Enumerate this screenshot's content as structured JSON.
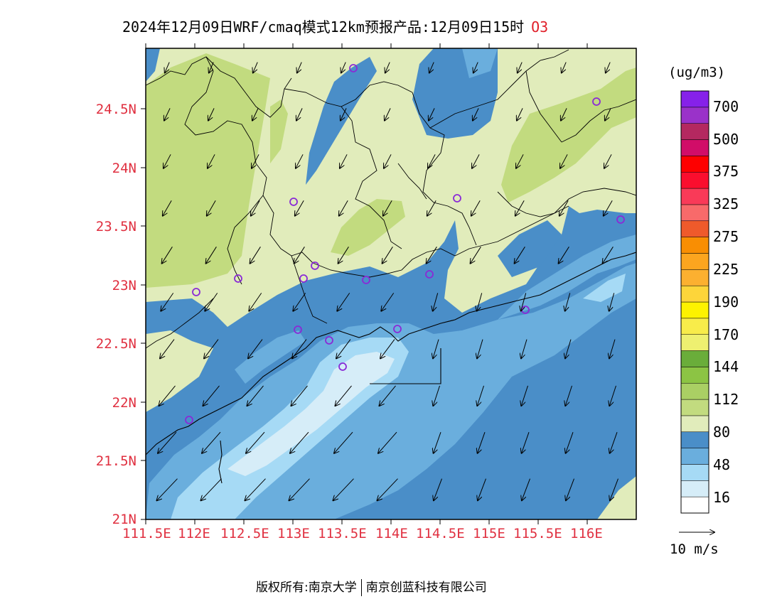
{
  "title": {
    "main": "2024年12月09日WRF/cmaq模式12km预报产品:12月09日15时",
    "species": "O3"
  },
  "axes": {
    "lat_labels": [
      "24.5N",
      "24N",
      "23.5N",
      "23N",
      "22.5N",
      "22N",
      "21.5N",
      "21N"
    ],
    "lon_labels": [
      "111.5E",
      "112E",
      "112.5E",
      "113E",
      "113.5E",
      "114E",
      "114.5E",
      "115E",
      "115.5E",
      "116E"
    ]
  },
  "colorbar": {
    "unit": "(ug/m3)",
    "colors": [
      "#ffffff",
      "#d6edf8",
      "#a6daf5",
      "#6aaedd",
      "#4a8ec8",
      "#e1ecbb",
      "#c2db7f",
      "#aacf64",
      "#8cc444",
      "#6aad3a",
      "#eef070",
      "#f8ec4a",
      "#fdf200",
      "#fdd53a",
      "#fcb030",
      "#fca51f",
      "#f98e03",
      "#ef5a2b",
      "#f86a6a",
      "#f93a58",
      "#fa0e2e",
      "#fe0000",
      "#d10d68",
      "#b42860",
      "#9a32c9",
      "#8621e9"
    ],
    "labels": [
      "16",
      "48",
      "80",
      "112",
      "144",
      "170",
      "190",
      "225",
      "275",
      "325",
      "375",
      "500",
      "700"
    ]
  },
  "reference_vector": {
    "label": "10 m/s"
  },
  "footer": {
    "copyright": "版权所有:南京大学",
    "org": "南京创蓝科技有限公司"
  },
  "map_colors": {
    "green": "#c2db7f",
    "light_green": "#e1ecbb",
    "dark_blue": "#4a8ec8",
    "mid_blue": "#6aaedd",
    "light_blue": "#a6daf5",
    "pale_blue": "#d6edf8",
    "station": "#8a2ad6"
  }
}
